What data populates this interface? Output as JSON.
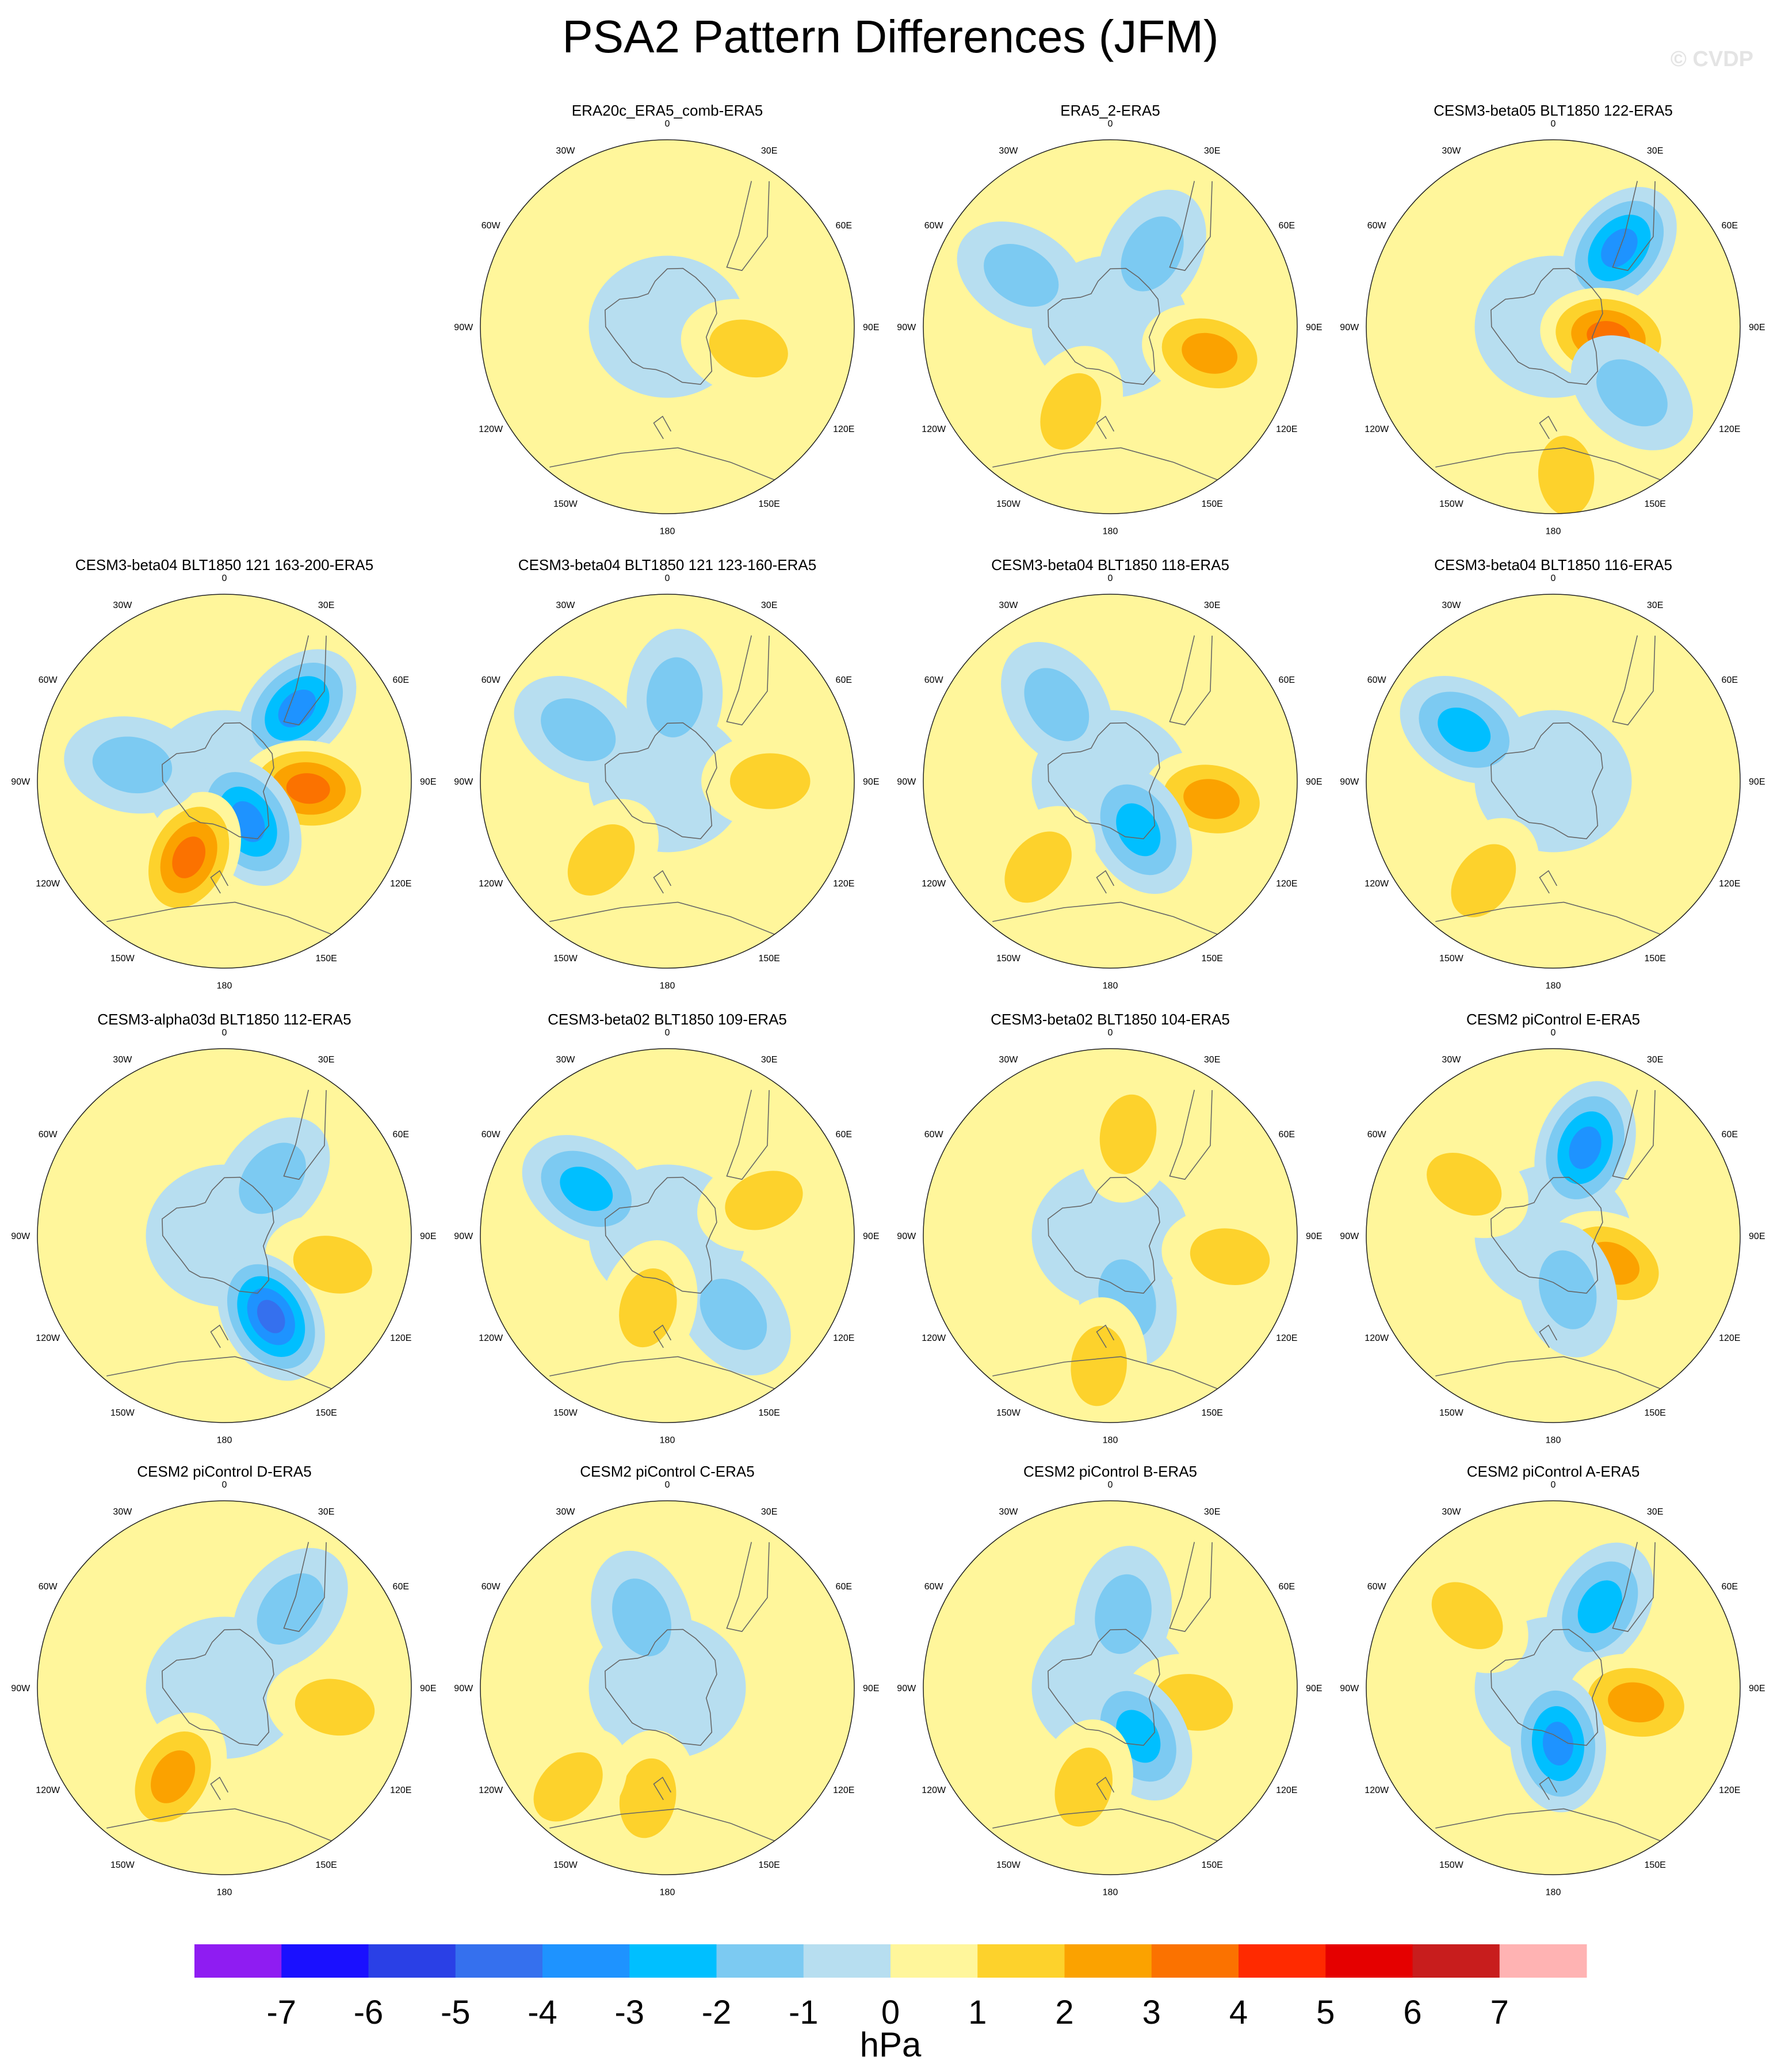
{
  "title": "PSA2 Pattern Differences (JFM)",
  "watermark": "© CVDP",
  "units": "hPa",
  "chart_data": {
    "type": "heatmap",
    "title": "PSA2 Pattern Differences (JFM)",
    "projection": "south-polar-stereographic",
    "colorbar": {
      "levels": [
        -7,
        -6,
        -5,
        -4,
        -3,
        -2,
        -1,
        0,
        1,
        2,
        3,
        4,
        5,
        6,
        7
      ],
      "label": "hPa",
      "colors": [
        "#8f1cf2",
        "#1a10ff",
        "#2a40e6",
        "#3570ee",
        "#1e93ff",
        "#00bfff",
        "#7ccaf2",
        "#b7def0",
        "#fff69b",
        "#fdd22c",
        "#fba200",
        "#fb7200",
        "#ff2a00",
        "#e50000",
        "#c81d1d",
        "#ffb3b3"
      ]
    },
    "longitude_labels": [
      "0",
      "30E",
      "60E",
      "90E",
      "120E",
      "150E",
      "180",
      "150W",
      "120W",
      "90W",
      "60W",
      "30W"
    ],
    "panels": [
      {
        "title": "ERA20c_ERA5_comb-ERA5",
        "features": [
          {
            "lon": 105,
            "r": 0.45,
            "value": 2
          }
        ]
      },
      {
        "title": "ERA5_2-ERA5",
        "features": [
          {
            "lon": 105,
            "r": 0.55,
            "value": 3
          },
          {
            "lon": 205,
            "r": 0.5,
            "value": 2
          },
          {
            "lon": 30,
            "r": 0.45,
            "value": -2
          },
          {
            "lon": 300,
            "r": 0.55,
            "value": -2
          }
        ]
      },
      {
        "title": "CESM3-beta05 BLT1850 122-ERA5",
        "features": [
          {
            "lon": 40,
            "r": 0.55,
            "value": -4
          },
          {
            "lon": 100,
            "r": 0.3,
            "value": 4
          },
          {
            "lon": 130,
            "r": 0.55,
            "value": -2
          },
          {
            "lon": 175,
            "r": 0.8,
            "value": 2
          }
        ]
      },
      {
        "title": "CESM3-beta04 BLT1850 121 163-200-ERA5",
        "features": [
          {
            "lon": 45,
            "r": 0.55,
            "value": -4
          },
          {
            "lon": 95,
            "r": 0.45,
            "value": 4
          },
          {
            "lon": 150,
            "r": 0.25,
            "value": -4
          },
          {
            "lon": 205,
            "r": 0.45,
            "value": 4
          },
          {
            "lon": 280,
            "r": 0.5,
            "value": -2
          }
        ]
      },
      {
        "title": "CESM3-beta04 BLT1850 121 123-160-ERA5",
        "features": [
          {
            "lon": 5,
            "r": 0.45,
            "value": -2
          },
          {
            "lon": 300,
            "r": 0.55,
            "value": -2
          },
          {
            "lon": 220,
            "r": 0.55,
            "value": 2
          },
          {
            "lon": 90,
            "r": 0.55,
            "value": 2
          }
        ]
      },
      {
        "title": "CESM3-beta04 BLT1850 118-ERA5",
        "features": [
          {
            "lon": 100,
            "r": 0.55,
            "value": 3
          },
          {
            "lon": 150,
            "r": 0.3,
            "value": -3
          },
          {
            "lon": 220,
            "r": 0.6,
            "value": 2
          },
          {
            "lon": 325,
            "r": 0.5,
            "value": -2
          }
        ]
      },
      {
        "title": "CESM3-beta04 BLT1850 116-ERA5",
        "features": [
          {
            "lon": 300,
            "r": 0.55,
            "value": -3
          },
          {
            "lon": 215,
            "r": 0.65,
            "value": 2
          }
        ]
      },
      {
        "title": "CESM3-alpha03d BLT1850 112-ERA5",
        "features": [
          {
            "lon": 40,
            "r": 0.4,
            "value": -2
          },
          {
            "lon": 105,
            "r": 0.6,
            "value": 2
          },
          {
            "lon": 150,
            "r": 0.5,
            "value": -5
          }
        ]
      },
      {
        "title": "CESM3-beta02 BLT1850 109-ERA5",
        "features": [
          {
            "lon": 70,
            "r": 0.55,
            "value": 2
          },
          {
            "lon": 300,
            "r": 0.5,
            "value": -3
          },
          {
            "lon": 140,
            "r": 0.55,
            "value": -2
          },
          {
            "lon": 195,
            "r": 0.4,
            "value": 2
          }
        ]
      },
      {
        "title": "CESM3-beta02 BLT1850 104-ERA5",
        "features": [
          {
            "lon": 10,
            "r": 0.55,
            "value": 2
          },
          {
            "lon": 100,
            "r": 0.65,
            "value": 2
          },
          {
            "lon": 165,
            "r": 0.35,
            "value": -2
          },
          {
            "lon": 185,
            "r": 0.7,
            "value": 2
          }
        ]
      },
      {
        "title": "CESM2 piControl E-ERA5",
        "features": [
          {
            "lon": 20,
            "r": 0.5,
            "value": -4
          },
          {
            "lon": 115,
            "r": 0.35,
            "value": 3
          },
          {
            "lon": 165,
            "r": 0.3,
            "value": -2
          },
          {
            "lon": 300,
            "r": 0.55,
            "value": 2
          }
        ]
      },
      {
        "title": "CESM2 piControl D-ERA5",
        "features": [
          {
            "lon": 40,
            "r": 0.55,
            "value": -2
          },
          {
            "lon": 100,
            "r": 0.6,
            "value": 2
          },
          {
            "lon": 210,
            "r": 0.55,
            "value": 3
          }
        ]
      },
      {
        "title": "CESM2 piControl C-ERA5",
        "features": [
          {
            "lon": 340,
            "r": 0.4,
            "value": -2
          },
          {
            "lon": 190,
            "r": 0.6,
            "value": 2
          },
          {
            "lon": 225,
            "r": 0.75,
            "value": 2
          }
        ]
      },
      {
        "title": "CESM2 piControl B-ERA5",
        "features": [
          {
            "lon": 10,
            "r": 0.4,
            "value": -2
          },
          {
            "lon": 100,
            "r": 0.45,
            "value": 2
          },
          {
            "lon": 150,
            "r": 0.3,
            "value": -3
          },
          {
            "lon": 195,
            "r": 0.55,
            "value": 2
          }
        ]
      },
      {
        "title": "CESM2 piControl A-ERA5",
        "features": [
          {
            "lon": 30,
            "r": 0.5,
            "value": -3
          },
          {
            "lon": 100,
            "r": 0.45,
            "value": 3
          },
          {
            "lon": 175,
            "r": 0.3,
            "value": -4
          },
          {
            "lon": 310,
            "r": 0.6,
            "value": 2
          }
        ]
      }
    ]
  }
}
